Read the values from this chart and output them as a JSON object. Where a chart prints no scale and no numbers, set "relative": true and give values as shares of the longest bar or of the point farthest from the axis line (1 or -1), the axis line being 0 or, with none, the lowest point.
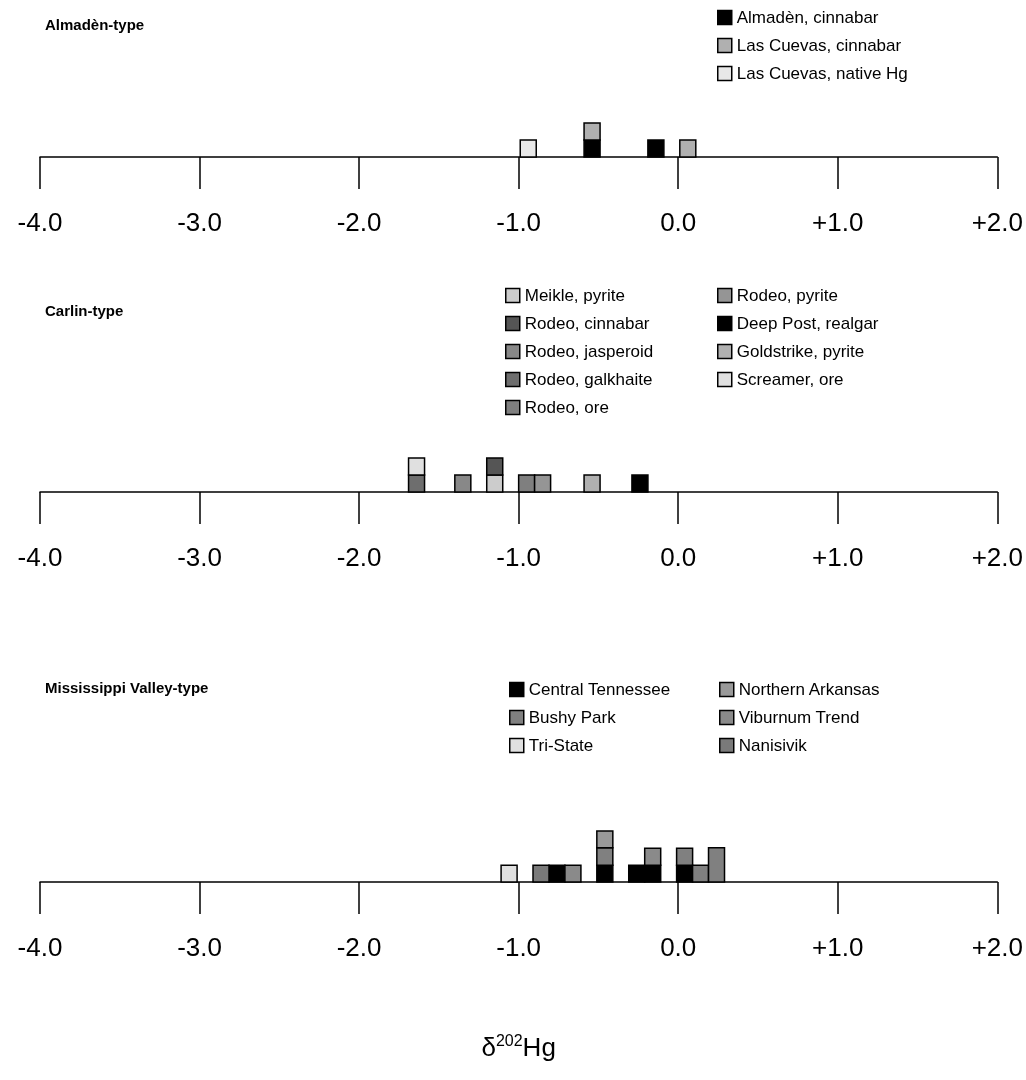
{
  "chart_data": [
    {
      "type": "bar",
      "title": "Almadèn-type",
      "relative": true,
      "stacked": true,
      "legend": "top right",
      "grid": false,
      "xlim": [
        -4,
        2
      ],
      "xticks": [
        {
          "value": -4,
          "label": "-4.0"
        },
        {
          "value": -3,
          "label": "-3.0"
        },
        {
          "value": -2,
          "label": "-2.0"
        },
        {
          "value": -1,
          "label": "-1.0"
        },
        {
          "value": 0,
          "label": "0.0"
        },
        {
          "value": 1,
          "label": "+1.0"
        },
        {
          "value": 2,
          "label": "+2.0"
        }
      ],
      "x": [
        -0.94,
        -0.54,
        -0.14,
        0.06
      ],
      "series": [
        {
          "name": "Almadèn, cinnabar",
          "color": "#000000",
          "values": [
            null,
            0.5,
            0.5,
            null
          ]
        },
        {
          "name": "Las Cuevas, cinnabar",
          "color": "#b0b0b0",
          "values": [
            null,
            0.5,
            null,
            0.5
          ]
        },
        {
          "name": "Las Cuevas, native Hg",
          "color": "#e8e8e8",
          "values": [
            0.5,
            null,
            null,
            null
          ]
        }
      ]
    },
    {
      "type": "bar",
      "title": "Carlin-type",
      "relative": true,
      "stacked": true,
      "legend": "top right",
      "grid": false,
      "xlim": [
        -4,
        2
      ],
      "xticks": [
        {
          "value": -4,
          "label": "-4.0"
        },
        {
          "value": -3,
          "label": "-3.0"
        },
        {
          "value": -2,
          "label": "-2.0"
        },
        {
          "value": -1,
          "label": "-1.0"
        },
        {
          "value": 0,
          "label": "0.0"
        },
        {
          "value": 1,
          "label": "+1.0"
        },
        {
          "value": 2,
          "label": "+2.0"
        }
      ],
      "x": [
        -1.64,
        -1.35,
        -1.15,
        -0.95,
        -0.85,
        -0.54,
        -0.24
      ],
      "series": [
        {
          "name": "Meikle, pyrite",
          "color": "#cccccc",
          "values": [
            null,
            null,
            0.5,
            null,
            null,
            null,
            null
          ]
        },
        {
          "name": "Rodeo, cinnabar",
          "color": "#555555",
          "values": [
            null,
            null,
            0.5,
            null,
            null,
            null,
            null
          ]
        },
        {
          "name": "Rodeo, jasperoid",
          "color": "#888888",
          "values": [
            null,
            0.5,
            null,
            null,
            null,
            null,
            null
          ]
        },
        {
          "name": "Rodeo, galkhaite",
          "color": "#6e6e6e",
          "values": [
            0.5,
            null,
            null,
            null,
            null,
            null,
            null
          ]
        },
        {
          "name": "Rodeo, ore",
          "color": "#7f7f7f",
          "values": [
            null,
            null,
            null,
            0.5,
            null,
            null,
            null
          ]
        },
        {
          "name": "Rodeo, pyrite",
          "color": "#959595",
          "values": [
            null,
            null,
            null,
            null,
            0.5,
            null,
            null
          ]
        },
        {
          "name": "Deep Post, realgar",
          "color": "#000000",
          "values": [
            null,
            null,
            null,
            null,
            null,
            null,
            0.5
          ]
        },
        {
          "name": "Goldstrike, pyrite",
          "color": "#b0b0b0",
          "values": [
            null,
            null,
            null,
            null,
            null,
            0.5,
            null
          ]
        },
        {
          "name": "Screamer, ore",
          "color": "#e0e0e0",
          "values": [
            0.5,
            null,
            null,
            null,
            null,
            null,
            null
          ]
        }
      ]
    },
    {
      "type": "bar",
      "title": "Mississippi Valley-type",
      "xlabel": "δ$^{202}$Hg",
      "relative": true,
      "stacked": true,
      "legend": "top right",
      "grid": false,
      "xlim": [
        -4,
        2
      ],
      "xticks": [
        {
          "value": -4,
          "label": "-4.0"
        },
        {
          "value": -3,
          "label": "-3.0"
        },
        {
          "value": -2,
          "label": "-2.0"
        },
        {
          "value": -1,
          "label": "-1.0"
        },
        {
          "value": 0,
          "label": "0.0"
        },
        {
          "value": 1,
          "label": "+1.0"
        },
        {
          "value": 2,
          "label": "+2.0"
        }
      ],
      "x": [
        -1.06,
        -0.86,
        -0.76,
        -0.66,
        -0.46,
        -0.26,
        -0.16,
        0.04,
        0.14,
        0.24
      ],
      "series": [
        {
          "name": "Central Tennessee",
          "color": "#000000",
          "values": [
            null,
            null,
            0.33,
            null,
            0.33,
            0.33,
            0.33,
            0.33,
            null,
            null
          ]
        },
        {
          "name": "Bushy Park",
          "color": "#808080",
          "values": [
            null,
            null,
            null,
            null,
            0.34,
            null,
            null,
            0.33,
            0.33,
            0.67
          ]
        },
        {
          "name": "Tri-State",
          "color": "#e0e0e0",
          "values": [
            0.33,
            null,
            null,
            null,
            null,
            null,
            null,
            null,
            null,
            null
          ]
        },
        {
          "name": "Northern Arkansas",
          "color": "#999999",
          "values": [
            null,
            null,
            null,
            null,
            0.33,
            null,
            null,
            null,
            null,
            null
          ]
        },
        {
          "name": "Viburnum Trend",
          "color": "#8a8a8a",
          "values": [
            null,
            null,
            null,
            0.33,
            null,
            null,
            0.33,
            null,
            null,
            null
          ]
        },
        {
          "name": "Nanisivik",
          "color": "#7a7a7a",
          "values": [
            null,
            0.33,
            null,
            null,
            null,
            null,
            null,
            null,
            null,
            null
          ]
        }
      ]
    }
  ]
}
